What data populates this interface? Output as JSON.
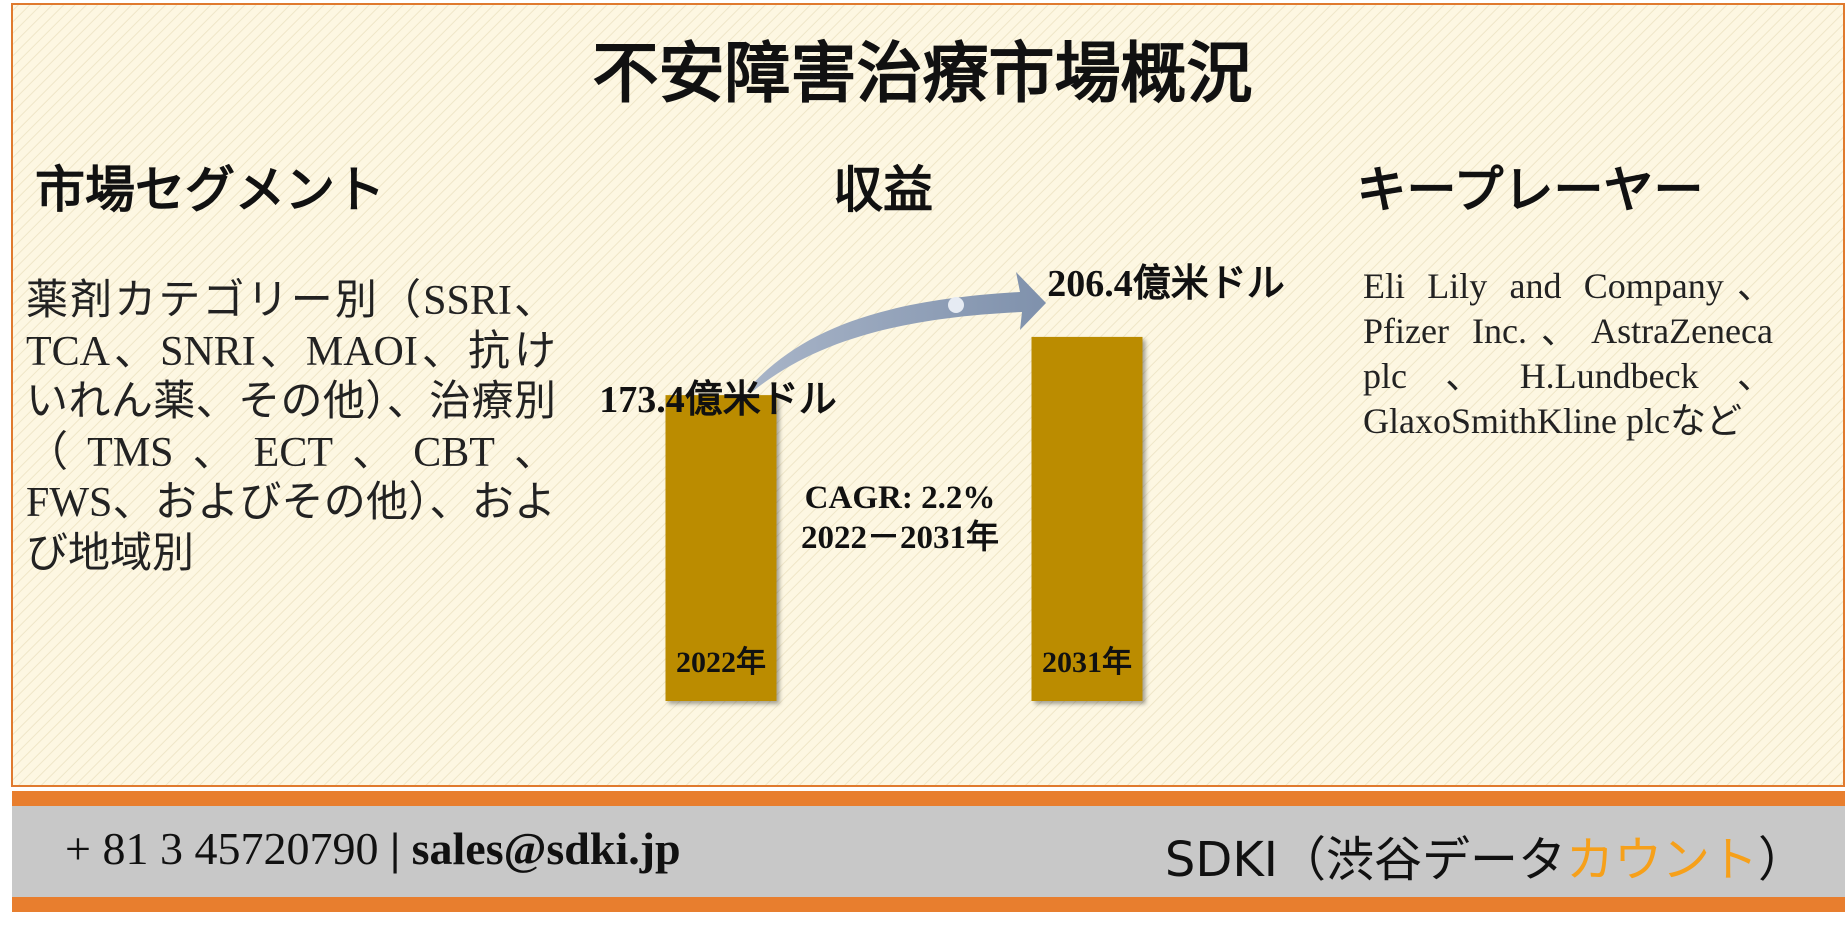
{
  "title": "不安障害治療市場概況",
  "headings": [
    "市場セグメント",
    "収益",
    "キープレーヤー"
  ],
  "segments_text": "薬剤カテゴリー別（SSRI、TCA、SNRI、MAOI、抗けいれん薬、その他）、治療別（TMS、ECT、CBT、FWS、およびその他）、および地域別",
  "key_players_text": "Eli Lily and Company、Pfizer Inc.、AstraZeneca plc、H.Lundbeck、GlaxoSmithKline plcなど",
  "chart_data": {
    "type": "bar",
    "categories": [
      "2022年",
      "2031年"
    ],
    "values": [
      173.4,
      206.4
    ],
    "value_labels": [
      "173.4億米ドル",
      "206.4億米ドル"
    ],
    "color": "#bb8c00",
    "annotations": [
      "CAGR: 2.2%",
      "2022－2031年"
    ]
  },
  "footer": {
    "phone": "+ 81 3 45720790",
    "separator": "|",
    "email": "sales@sdki.jp",
    "company": "SDKI（渋谷データ",
    "company_accent": "カウント",
    "company_end": "）"
  }
}
